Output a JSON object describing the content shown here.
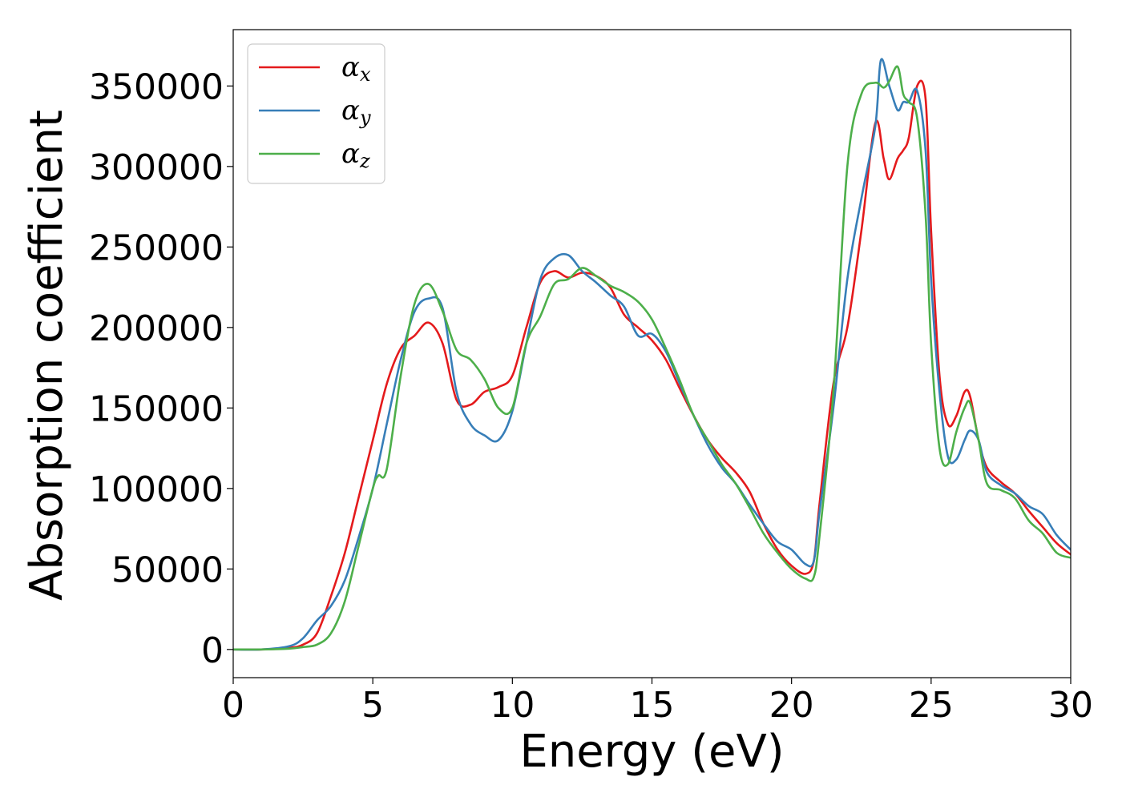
{
  "chart_data": {
    "type": "line",
    "title": "",
    "xlabel": "Energy (eV)",
    "ylabel": "Absorption coefficient",
    "xlim": [
      0,
      30
    ],
    "ylim": [
      -17500,
      385000
    ],
    "xticks": [
      0,
      5,
      10,
      15,
      20,
      25,
      30
    ],
    "yticks": [
      0,
      50000,
      100000,
      150000,
      200000,
      250000,
      300000,
      350000
    ],
    "xtick_labels": [
      "0",
      "5",
      "10",
      "15",
      "20",
      "25",
      "30"
    ],
    "ytick_labels": [
      "0",
      "50000",
      "100000",
      "150000",
      "200000",
      "250000",
      "300000",
      "350000"
    ],
    "grid": false,
    "legend_position": "top-left",
    "series": [
      {
        "name": "αx",
        "symbol": "α",
        "sub": "x",
        "color": "#e41a1c",
        "x": [
          0,
          1,
          2,
          2.5,
          3,
          3.5,
          4,
          4.5,
          5,
          5.5,
          6,
          6.5,
          7,
          7.5,
          8,
          8.5,
          9,
          9.5,
          10,
          10.5,
          11,
          11.5,
          12,
          12.5,
          13,
          13.5,
          14,
          14.5,
          15,
          15.5,
          16,
          16.5,
          17,
          17.5,
          18,
          18.5,
          19,
          19.5,
          20,
          20.5,
          20.8,
          21,
          21.5,
          22,
          22.5,
          23,
          23.3,
          23.5,
          23.8,
          24,
          24.2,
          24.5,
          24.8,
          25,
          25.3,
          25.6,
          25.9,
          26.2,
          26.4,
          26.7,
          27,
          27.5,
          28,
          28.5,
          29,
          29.5,
          30
        ],
        "y": [
          0,
          0,
          1000,
          3000,
          10000,
          33000,
          60000,
          95000,
          130000,
          165000,
          187000,
          195000,
          203000,
          190000,
          155000,
          152000,
          160000,
          163000,
          170000,
          200000,
          228000,
          235000,
          231000,
          234000,
          232000,
          225000,
          208000,
          200000,
          192000,
          180000,
          162000,
          145000,
          130000,
          119000,
          110000,
          98000,
          78000,
          62000,
          52000,
          47000,
          55000,
          90000,
          165000,
          200000,
          260000,
          327000,
          305000,
          292000,
          305000,
          310000,
          318000,
          350000,
          342000,
          260000,
          170000,
          140000,
          145000,
          160000,
          157000,
          130000,
          113000,
          104000,
          97000,
          86000,
          76000,
          66000,
          59000
        ]
      },
      {
        "name": "αy",
        "symbol": "α",
        "sub": "y",
        "color": "#377eb8",
        "x": [
          0,
          1,
          2,
          2.5,
          3,
          3.5,
          4,
          4.5,
          5,
          5.5,
          6,
          6.5,
          7,
          7.5,
          8,
          8.5,
          9,
          9.5,
          10,
          10.5,
          11,
          11.5,
          12,
          12.5,
          13,
          13.5,
          14,
          14.5,
          15,
          15.5,
          16,
          16.5,
          17,
          17.5,
          18,
          18.5,
          19,
          19.5,
          20,
          20.5,
          20.8,
          21,
          21.5,
          22,
          22.5,
          23,
          23.2,
          23.5,
          23.8,
          24,
          24.2,
          24.5,
          24.8,
          25,
          25.3,
          25.6,
          25.9,
          26.2,
          26.4,
          26.7,
          27,
          27.5,
          28,
          28.5,
          29,
          29.5,
          30
        ],
        "y": [
          0,
          0,
          2000,
          7000,
          18000,
          27000,
          43000,
          70000,
          100000,
          140000,
          180000,
          210000,
          218000,
          212000,
          160000,
          140000,
          133000,
          130000,
          148000,
          190000,
          230000,
          243000,
          245000,
          235000,
          228000,
          220000,
          213000,
          195000,
          196000,
          185000,
          165000,
          145000,
          127000,
          113000,
          103000,
          90000,
          78000,
          67000,
          62000,
          53000,
          55000,
          85000,
          150000,
          230000,
          280000,
          325000,
          366000,
          350000,
          335000,
          340000,
          340000,
          347000,
          310000,
          230000,
          160000,
          120000,
          118000,
          130000,
          136000,
          130000,
          110000,
          102000,
          97000,
          89000,
          84000,
          71000,
          62000
        ]
      },
      {
        "name": "αz",
        "symbol": "α",
        "sub": "z",
        "color": "#4daf4a",
        "x": [
          0,
          1,
          2,
          2.5,
          3,
          3.5,
          4,
          4.5,
          5,
          5.2,
          5.5,
          6,
          6.5,
          7,
          7.5,
          8,
          8.5,
          9,
          9.5,
          10,
          10.5,
          11,
          11.5,
          12,
          12.5,
          13,
          13.5,
          14,
          14.5,
          15,
          15.5,
          16,
          16.5,
          17,
          17.5,
          18,
          18.5,
          19,
          19.5,
          20,
          20.5,
          20.8,
          21,
          21.5,
          22,
          22.5,
          23,
          23.3,
          23.5,
          23.8,
          24,
          24.2,
          24.5,
          24.8,
          25,
          25.3,
          25.6,
          25.9,
          26.2,
          26.4,
          26.7,
          27,
          27.5,
          28,
          28.5,
          29,
          29.5,
          30
        ],
        "y": [
          0,
          0,
          500,
          1500,
          3000,
          10000,
          30000,
          65000,
          100000,
          108000,
          112000,
          170000,
          215000,
          227000,
          210000,
          186000,
          180000,
          168000,
          150000,
          150000,
          190000,
          207000,
          227000,
          230000,
          237000,
          232000,
          226000,
          222000,
          216000,
          205000,
          187000,
          167000,
          145000,
          130000,
          115000,
          103000,
          88000,
          72000,
          60000,
          50000,
          44000,
          45000,
          70000,
          160000,
          300000,
          345000,
          352000,
          349000,
          353000,
          362000,
          345000,
          340000,
          330000,
          270000,
          190000,
          125000,
          115000,
          135000,
          150000,
          153000,
          130000,
          103000,
          99000,
          94000,
          80000,
          72000,
          60000,
          57000
        ]
      }
    ]
  }
}
